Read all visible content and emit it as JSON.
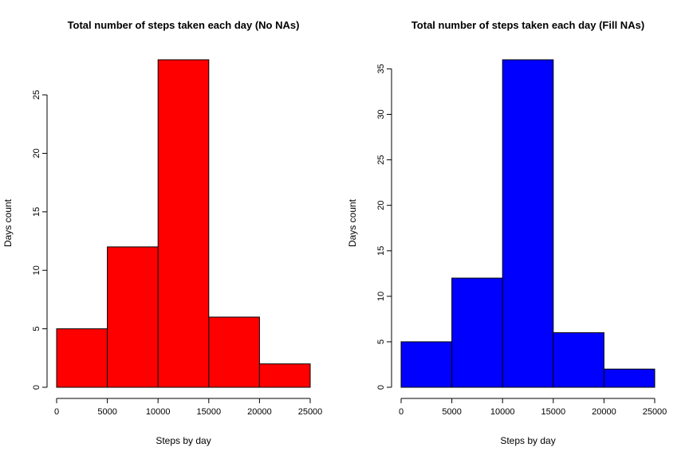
{
  "chart_data": [
    {
      "type": "bar",
      "title": "Total number of steps taken each day (No NAs)",
      "xlabel": "Steps by day",
      "ylabel": "Days count",
      "bins": [
        [
          0,
          5000
        ],
        [
          5000,
          10000
        ],
        [
          10000,
          15000
        ],
        [
          15000,
          20000
        ],
        [
          20000,
          25000
        ]
      ],
      "values": [
        5,
        12,
        28,
        6,
        2
      ],
      "xlim": [
        0,
        25000
      ],
      "ylim": [
        0,
        28
      ],
      "x_ticks": [
        "0",
        "5000",
        "10000",
        "15000",
        "20000",
        "25000"
      ],
      "y_ticks": [
        "0",
        "5",
        "10",
        "15",
        "20",
        "25"
      ],
      "bar_color": "#ff0000",
      "grid": false
    },
    {
      "type": "bar",
      "title": "Total number of steps taken each day (Fill NAs)",
      "xlabel": "Steps by day",
      "ylabel": "Days count",
      "bins": [
        [
          0,
          5000
        ],
        [
          5000,
          10000
        ],
        [
          10000,
          15000
        ],
        [
          15000,
          20000
        ],
        [
          20000,
          25000
        ]
      ],
      "values": [
        5,
        12,
        36,
        6,
        2
      ],
      "xlim": [
        0,
        25000
      ],
      "ylim": [
        0,
        36
      ],
      "x_ticks": [
        "0",
        "5000",
        "10000",
        "15000",
        "20000",
        "25000"
      ],
      "y_ticks": [
        "0",
        "5",
        "10",
        "15",
        "20",
        "25",
        "30",
        "35"
      ],
      "bar_color": "#0000ff",
      "grid": false
    }
  ]
}
